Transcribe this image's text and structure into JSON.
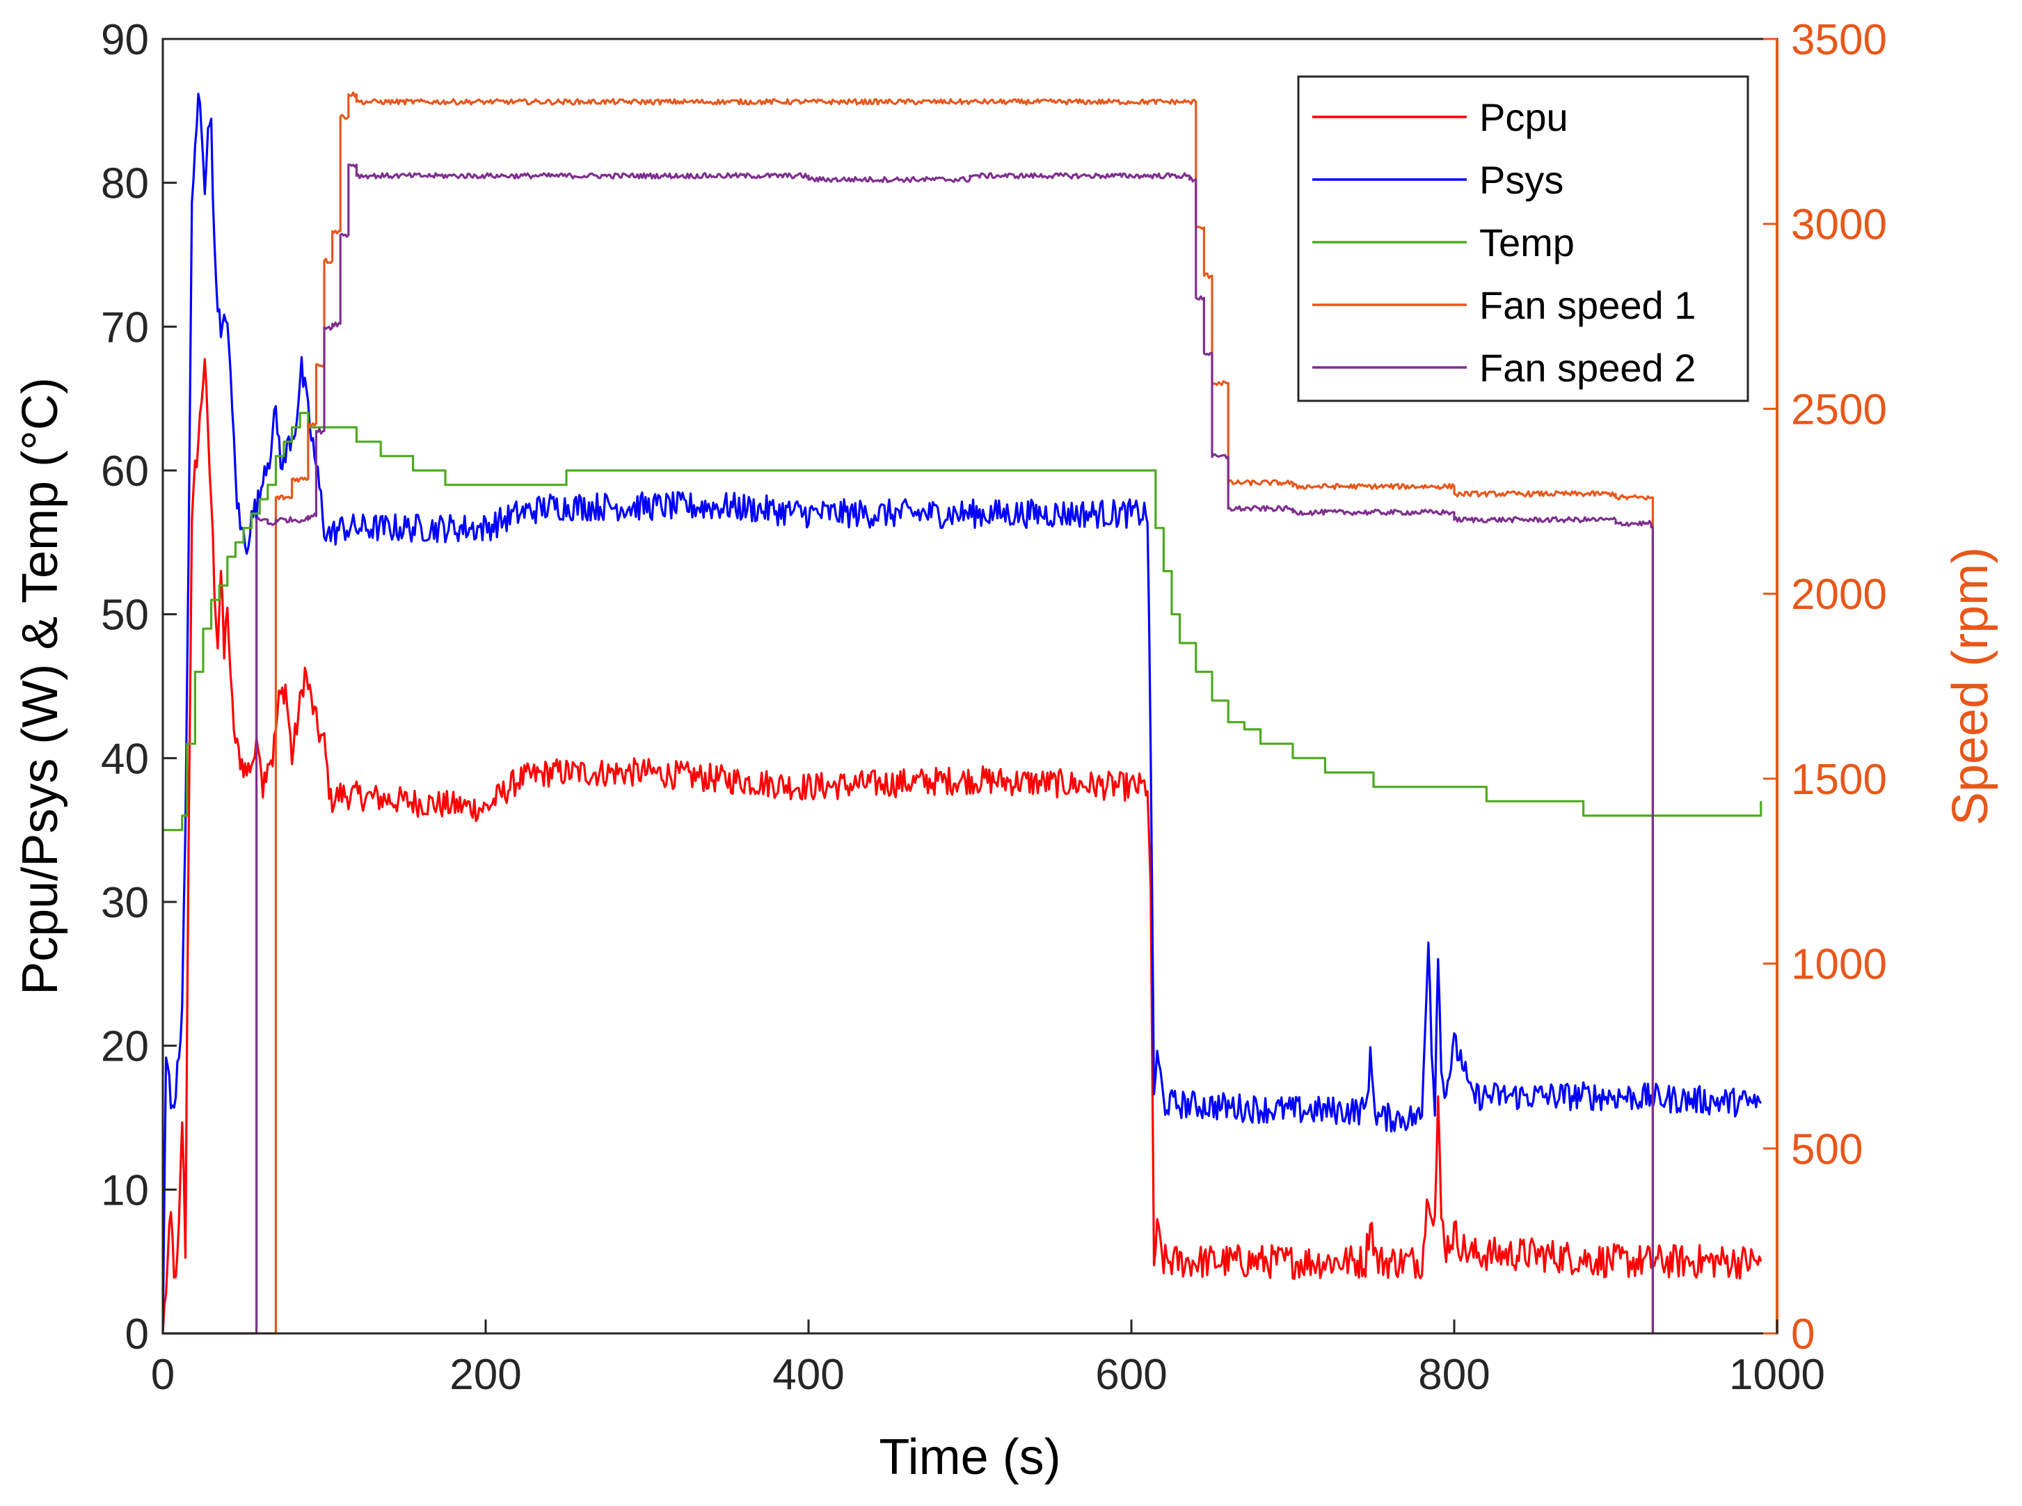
{
  "chart_data": {
    "type": "line",
    "xlabel": "Time (s)",
    "ylabel_left": "Pcpu/Psys (W) & Temp (°C)",
    "ylabel_right": "Speed (rpm)",
    "xlim": [
      0,
      1000
    ],
    "ylim_left": [
      0,
      90
    ],
    "ylim_right": [
      0,
      3500
    ],
    "xticks": [
      "0",
      "200",
      "400",
      "600",
      "800",
      "1000"
    ],
    "yticks_left": [
      "0",
      "10",
      "20",
      "30",
      "40",
      "50",
      "60",
      "70",
      "80",
      "90"
    ],
    "yticks_right": [
      "0",
      "500",
      "1000",
      "1500",
      "2000",
      "2500",
      "3000",
      "3500"
    ],
    "grid": false,
    "legend_position": "top-right",
    "right_axis_color": "#E8571A",
    "series": [
      {
        "name": "Pcpu",
        "axis": "left",
        "color": "#FF0000",
        "noise": 1.0,
        "x": [
          0,
          5,
          8,
          10,
          12,
          14,
          16,
          18,
          20,
          22,
          24,
          26,
          28,
          30,
          32,
          34,
          36,
          38,
          40,
          42,
          45,
          48,
          52,
          56,
          60,
          62,
          65,
          68,
          72,
          76,
          80,
          84,
          88,
          92,
          96,
          100,
          104,
          110,
          150,
          200,
          220,
          240,
          300,
          350,
          400,
          500,
          600,
          610,
          612,
          614,
          616,
          618,
          620,
          640,
          700,
          745,
          748,
          752,
          780,
          784,
          788,
          790,
          792,
          795,
          800,
          805,
          810,
          850,
          900,
          990
        ],
        "y": [
          0,
          8,
          3,
          7,
          15,
          6,
          35,
          56,
          60,
          62,
          65,
          68,
          62,
          58,
          52,
          48,
          53,
          47,
          51,
          45,
          41,
          40,
          39,
          40,
          41,
          38,
          40,
          40,
          44,
          45,
          40,
          43,
          46,
          44,
          42,
          41,
          37,
          37.5,
          37,
          36.5,
          38.5,
          39,
          39,
          38.5,
          38,
          38.5,
          38,
          38,
          30,
          5,
          7,
          6,
          5,
          5,
          5,
          5,
          8,
          5,
          5,
          10,
          8,
          16,
          8,
          6,
          7,
          6,
          5.5,
          5.5,
          5,
          5
        ]
      },
      {
        "name": "Psys",
        "axis": "left",
        "color": "#0000FF",
        "noise": 1.0,
        "x": [
          0,
          2,
          4,
          6,
          8,
          10,
          12,
          14,
          16,
          18,
          20,
          22,
          24,
          26,
          28,
          30,
          32,
          34,
          36,
          40,
          42,
          44,
          46,
          48,
          52,
          56,
          60,
          62,
          66,
          70,
          74,
          78,
          82,
          86,
          90,
          94,
          98,
          100,
          104,
          110,
          150,
          200,
          220,
          240,
          300,
          350,
          400,
          500,
          600,
          610,
          612,
          614,
          616,
          618,
          620,
          700,
          745,
          748,
          752,
          780,
          784,
          786,
          788,
          790,
          792,
          795,
          800,
          805,
          810,
          850,
          900,
          990
        ],
        "y": [
          0,
          19,
          18,
          15,
          17,
          19,
          23,
          35,
          55,
          78,
          82,
          86,
          84,
          80,
          83,
          85,
          75,
          72,
          69,
          71,
          66,
          62,
          58,
          56,
          55,
          57,
          58,
          60,
          61,
          64,
          60,
          62,
          63,
          67,
          64,
          61,
          58,
          56,
          55.5,
          56,
          56,
          56,
          57,
          57.5,
          57.5,
          57.5,
          57,
          57,
          57,
          57,
          40,
          17,
          19,
          18,
          16,
          15.5,
          15.5,
          19,
          15,
          15,
          28,
          20,
          16,
          27,
          18,
          17,
          20,
          19,
          16.5,
          16.5,
          16.5,
          16
        ]
      },
      {
        "name": "Temp",
        "axis": "left",
        "color": "#4DAA1E",
        "step": true,
        "x": [
          0,
          12,
          15,
          20,
          25,
          30,
          35,
          40,
          45,
          50,
          55,
          60,
          65,
          70,
          75,
          80,
          85,
          90,
          120,
          135,
          155,
          175,
          200,
          250,
          300,
          400,
          500,
          600,
          610,
          615,
          620,
          625,
          630,
          640,
          650,
          660,
          670,
          680,
          700,
          720,
          750,
          800,
          820,
          850,
          880,
          950,
          990
        ],
        "y": [
          35,
          36,
          41,
          46,
          49,
          51,
          52,
          54,
          55,
          56,
          57,
          58,
          59,
          61,
          62,
          63,
          64,
          63,
          62,
          61,
          60,
          59,
          59,
          60,
          60,
          60,
          60,
          60,
          60,
          56,
          53,
          50,
          48,
          46,
          44,
          42.5,
          42,
          41,
          40,
          39,
          38,
          38,
          37,
          37,
          36,
          36,
          37
        ]
      },
      {
        "name": "Fan speed 1",
        "axis": "right",
        "color": "#E8571A",
        "step": true,
        "x": [
          0,
          10,
          20,
          30,
          40,
          50,
          60,
          70,
          80,
          90,
          95,
          100,
          105,
          110,
          115,
          120,
          200,
          400,
          500,
          600,
          636,
          640,
          645,
          650,
          660,
          700,
          800,
          900,
          922,
          923
        ],
        "y": [
          0,
          0,
          0,
          0,
          0,
          0,
          0,
          2260,
          2310,
          2460,
          2620,
          2900,
          2980,
          3290,
          3350,
          3330,
          3330,
          3330,
          3330,
          3330,
          3330,
          2990,
          2860,
          2570,
          2300,
          2290,
          2270,
          2260,
          2260,
          0
        ]
      },
      {
        "name": "Fan speed 2",
        "axis": "right",
        "color": "#7E2F8E",
        "step": true,
        "x": [
          0,
          57,
          58,
          60,
          65,
          70,
          90,
          95,
          100,
          105,
          110,
          115,
          120,
          200,
          400,
          500,
          600,
          636,
          640,
          645,
          650,
          660,
          700,
          800,
          900,
          922,
          923
        ],
        "y": [
          0,
          0,
          2200,
          2200,
          2190,
          2200,
          2210,
          2440,
          2720,
          2730,
          2970,
          3160,
          3130,
          3130,
          3120,
          3130,
          3130,
          3120,
          2800,
          2650,
          2370,
          2230,
          2220,
          2200,
          2190,
          2180,
          0
        ]
      }
    ]
  }
}
